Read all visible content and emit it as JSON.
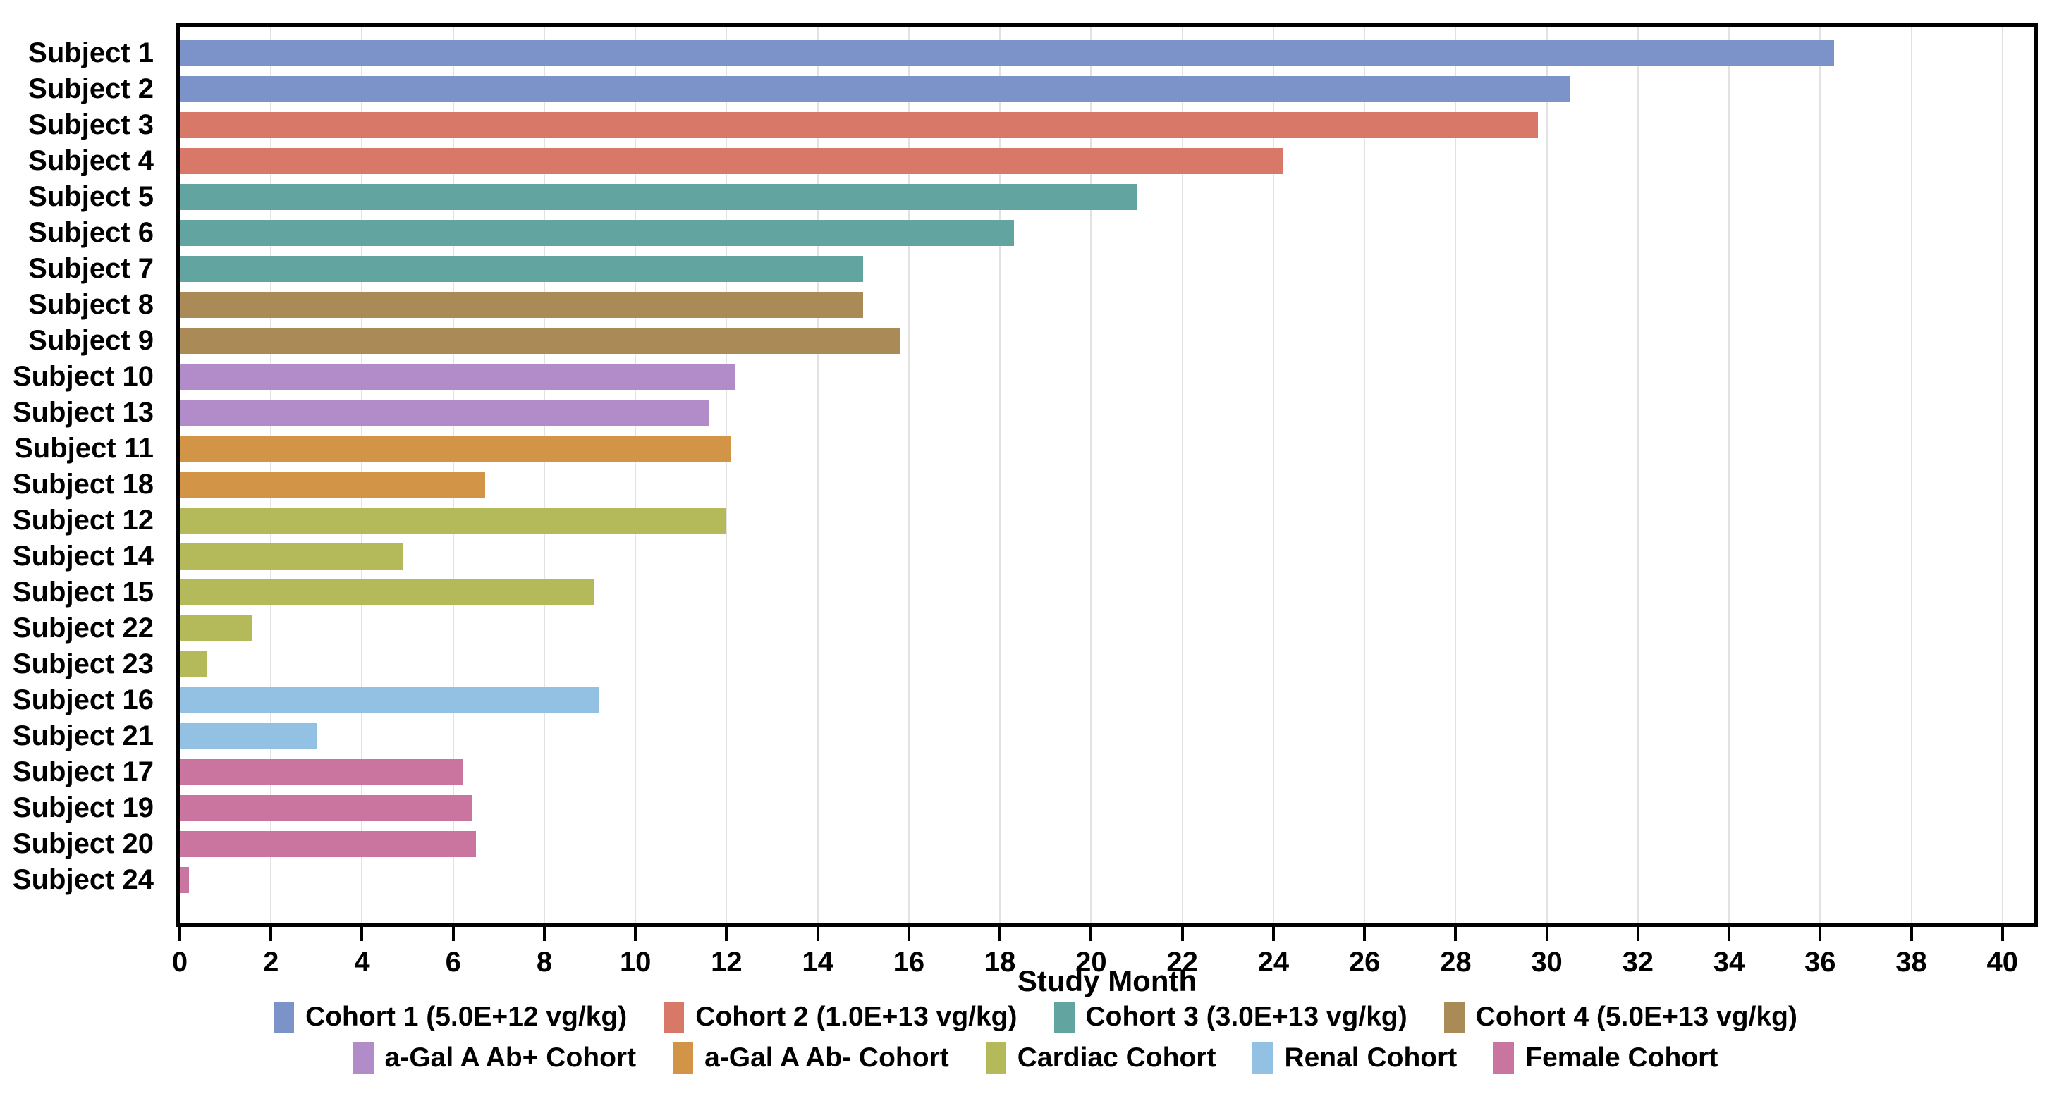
{
  "chart_data": {
    "type": "bar",
    "orientation": "horizontal",
    "title": "",
    "xlabel": "Study Month",
    "ylabel": "",
    "xlim": [
      0,
      40.7
    ],
    "xticks": [
      0,
      2,
      4,
      6,
      8,
      10,
      12,
      14,
      16,
      18,
      20,
      22,
      24,
      26,
      28,
      30,
      32,
      34,
      36,
      38,
      40
    ],
    "grid": "vertical gridlines every 2 months",
    "gridline_color": "#e2e2e2",
    "categories": [
      "Subject 1",
      "Subject 2",
      "Subject 3",
      "Subject 4",
      "Subject 5",
      "Subject 6",
      "Subject 7",
      "Subject 8",
      "Subject 9",
      "Subject 10",
      "Subject 13",
      "Subject 11",
      "Subject 18",
      "Subject 12",
      "Subject 14",
      "Subject 15",
      "Subject 22",
      "Subject 23",
      "Subject 16",
      "Subject 21",
      "Subject 17",
      "Subject 19",
      "Subject 20",
      "Subject 24"
    ],
    "values": [
      36.3,
      30.5,
      29.8,
      24.2,
      21.0,
      18.3,
      15.0,
      15.0,
      15.8,
      12.2,
      11.6,
      12.1,
      6.7,
      12.0,
      4.9,
      9.1,
      1.6,
      0.6,
      9.2,
      3.0,
      6.2,
      6.4,
      6.5,
      0.2
    ],
    "cohorts": [
      "cohort1",
      "cohort1",
      "cohort2",
      "cohort2",
      "cohort3",
      "cohort3",
      "cohort3",
      "cohort4",
      "cohort4",
      "abplus",
      "abplus",
      "abminus",
      "abminus",
      "cardiac",
      "cardiac",
      "cardiac",
      "cardiac",
      "cardiac",
      "renal",
      "renal",
      "female",
      "female",
      "female",
      "female"
    ],
    "cohort_colors": {
      "cohort1": "#7b93c8",
      "cohort2": "#d87868",
      "cohort3": "#62a5a0",
      "cohort4": "#aa8b58",
      "abplus": "#b28bc9",
      "abminus": "#d29447",
      "cardiac": "#b4ba59",
      "renal": "#93c1e3",
      "female": "#c9759f"
    },
    "legend": {
      "position": "bottom",
      "rows": [
        [
          {
            "label": "Cohort 1 (5.0E+12 vg/kg)",
            "cohort": "cohort1"
          },
          {
            "label": "Cohort 2 (1.0E+13 vg/kg)",
            "cohort": "cohort2"
          },
          {
            "label": "Cohort 3 (3.0E+13 vg/kg)",
            "cohort": "cohort3"
          },
          {
            "label": "Cohort 4 (5.0E+13 vg/kg)",
            "cohort": "cohort4"
          }
        ],
        [
          {
            "label": "a-Gal A Ab+ Cohort",
            "cohort": "abplus"
          },
          {
            "label": "a-Gal A Ab- Cohort",
            "cohort": "abminus"
          },
          {
            "label": "Cardiac Cohort",
            "cohort": "cardiac"
          },
          {
            "label": "Renal Cohort",
            "cohort": "renal"
          },
          {
            "label": "Female Cohort",
            "cohort": "female"
          }
        ]
      ]
    }
  }
}
